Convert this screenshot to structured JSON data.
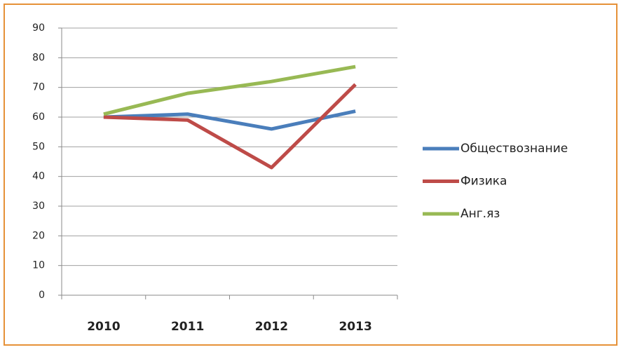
{
  "chart_data": {
    "type": "line",
    "categories": [
      "2010",
      "2011",
      "2012",
      "2013"
    ],
    "series": [
      {
        "name": "Обществознание",
        "color": "#4a7ebb",
        "values": [
          60,
          61,
          56,
          62
        ]
      },
      {
        "name": "Физика",
        "color": "#be4b48",
        "values": [
          60,
          59,
          43,
          71
        ]
      },
      {
        "name": "Анг.яз",
        "color": "#98b954",
        "values": [
          61,
          68,
          72,
          77
        ]
      }
    ],
    "ylim": [
      0,
      90
    ],
    "yticks": [
      0,
      10,
      20,
      30,
      40,
      50,
      60,
      70,
      80,
      90
    ],
    "grid": true,
    "legend": "right"
  }
}
